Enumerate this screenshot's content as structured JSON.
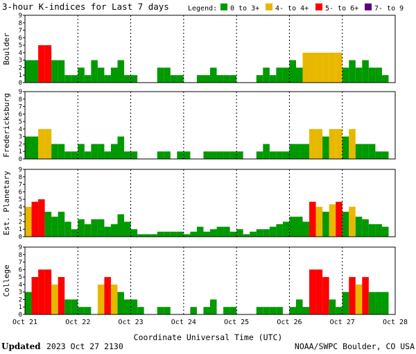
{
  "chart_data": {
    "type": "bar",
    "title": "3-hour K-indices for Last 7 days",
    "legend": {
      "label": "Legend:",
      "entries": [
        {
          "label": "0 to 3+",
          "color": "#009900"
        },
        {
          "label": "4- to 4+",
          "color": "#e8b800"
        },
        {
          "label": "5- to 6+",
          "color": "#ff0000"
        },
        {
          "label": "7- to 9",
          "color": "#5c0080"
        }
      ]
    },
    "ylim": [
      0,
      9
    ],
    "yticks": [
      "0",
      "1",
      "2",
      "3",
      "4",
      "5",
      "6",
      "7",
      "8",
      "9"
    ],
    "xlabel": "Coordinate Universal Time (UTC)",
    "x_ticks": [
      "Oct 21",
      "Oct 22",
      "Oct 23",
      "Oct 24",
      "Oct 25",
      "Oct 26",
      "Oct 27",
      "Oct 28"
    ],
    "grid": false,
    "series": [
      {
        "name": "Boulder",
        "values": [
          3,
          3,
          5,
          5,
          3,
          3,
          1,
          1,
          2,
          1,
          3,
          2,
          1,
          2,
          3,
          1,
          1,
          0,
          0,
          0,
          2,
          2,
          1,
          1,
          0,
          0,
          1,
          1,
          2,
          1,
          1,
          1,
          0,
          0,
          0,
          1,
          2,
          1,
          2,
          2,
          3,
          2,
          4,
          4,
          4,
          4,
          4,
          4,
          2,
          3,
          2,
          3,
          2,
          2,
          1,
          0
        ]
      },
      {
        "name": "Fredericksburg",
        "values": [
          3,
          3,
          4,
          4,
          2,
          2,
          1,
          1,
          2,
          1,
          2,
          2,
          1,
          2,
          3,
          1,
          1,
          0,
          0,
          0,
          1,
          1,
          0,
          1,
          1,
          0,
          0,
          1,
          1,
          1,
          1,
          1,
          1,
          0,
          0,
          1,
          2,
          1,
          1,
          1,
          2,
          2,
          2,
          4,
          4,
          3,
          4,
          4,
          3,
          4,
          2,
          2,
          2,
          1,
          1,
          0
        ]
      },
      {
        "name": "Est. Planetary",
        "values": [
          4,
          4.67,
          5,
          3.33,
          2.67,
          3.33,
          2,
          1,
          2.33,
          1.67,
          2.33,
          2.33,
          1.33,
          1.67,
          3,
          2,
          1,
          0.33,
          0.33,
          0.33,
          0.67,
          0.67,
          0.67,
          0.67,
          0.33,
          0.67,
          1.33,
          0.67,
          1,
          1.33,
          1.33,
          0.67,
          1,
          0.33,
          0.67,
          1,
          1,
          1.33,
          1.67,
          2,
          2.67,
          2.67,
          2,
          4.67,
          4,
          3.33,
          4.33,
          4.67,
          3.33,
          4,
          2.67,
          2.33,
          1.67,
          1.67,
          1.33,
          0
        ]
      },
      {
        "name": "College",
        "values": [
          3,
          5,
          6,
          6,
          4,
          5,
          2,
          2,
          1,
          1,
          0,
          4,
          5,
          4,
          3,
          2,
          2,
          1,
          0,
          0,
          1,
          1,
          0,
          0,
          0,
          1,
          0,
          1,
          2,
          0,
          1,
          1,
          0,
          0,
          0,
          1,
          1,
          1,
          1,
          0,
          1,
          2,
          1,
          6,
          6,
          5,
          2,
          1,
          3,
          5,
          4,
          5,
          3,
          3,
          3,
          0
        ]
      }
    ]
  },
  "footer": {
    "updated_label": "Updated",
    "updated_time": "2023 Oct 27 2130",
    "source": "NOAA/SWPC Boulder, CO USA"
  }
}
